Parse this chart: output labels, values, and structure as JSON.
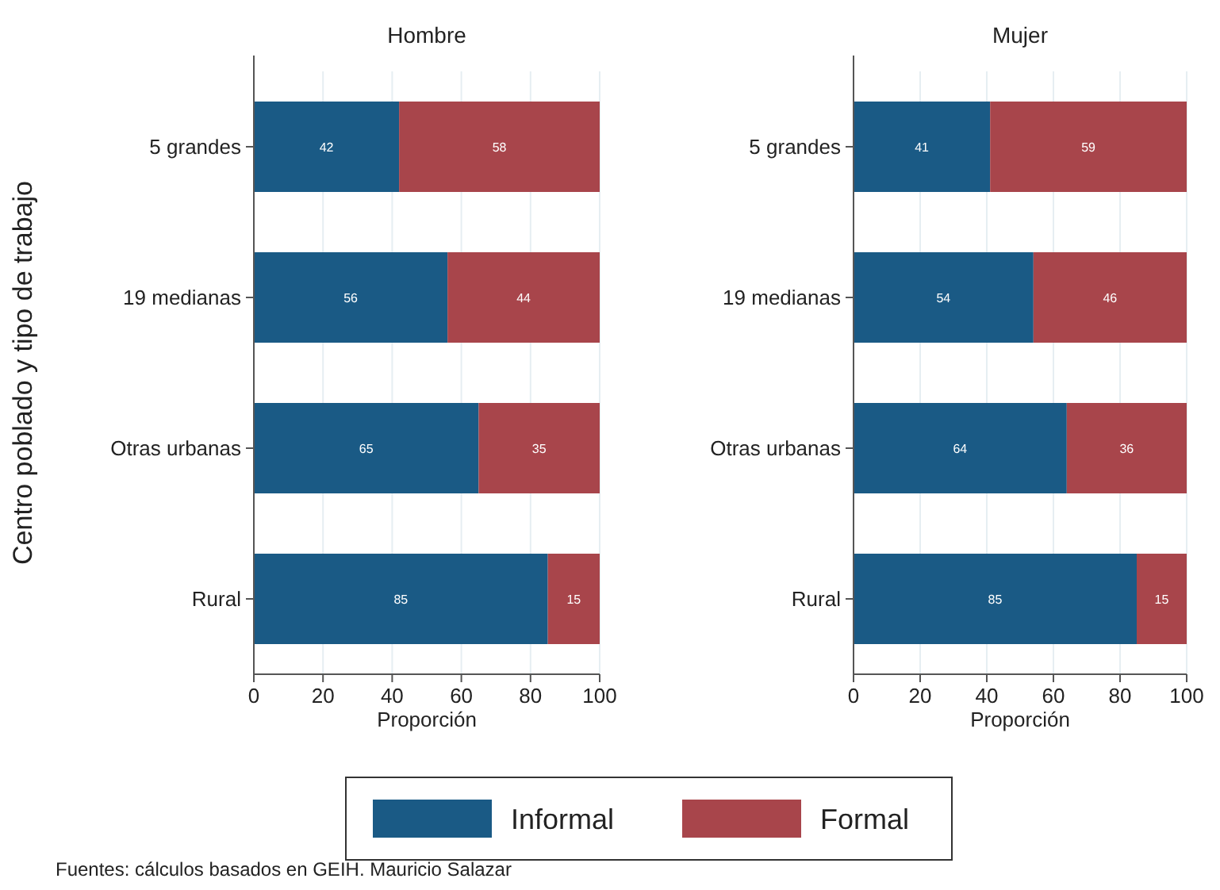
{
  "chart_data": [
    {
      "type": "bar",
      "title": "Hombre",
      "xlabel": "Proporción",
      "ylabel": "Centro poblado y tipo de trabajo",
      "orientation": "horizontal",
      "stacked": true,
      "data_labels": true,
      "grid": "x",
      "legend": "bottom",
      "categories": [
        "5 grandes",
        "19 medianas",
        "Otras urbanas",
        "Rural"
      ],
      "series": [
        {
          "name": "Informal",
          "color": "#1a5a85",
          "values": [
            42,
            56,
            65,
            85
          ]
        },
        {
          "name": "Formal",
          "color": "#a8454b",
          "values": [
            58,
            44,
            35,
            15
          ]
        }
      ],
      "xlim": [
        0,
        100
      ],
      "xticks": [
        0,
        20,
        40,
        60,
        80,
        100
      ],
      "annotations": [
        "Fuentes: cálculos basados en GEIH. Mauricio Salazar"
      ]
    },
    {
      "type": "bar",
      "title": "Mujer",
      "xlabel": "Proporción",
      "orientation": "horizontal",
      "stacked": true,
      "data_labels": true,
      "grid": "x",
      "categories": [
        "5 grandes",
        "19 medianas",
        "Otras urbanas",
        "Rural"
      ],
      "series": [
        {
          "color": "#1a5a85",
          "values": [
            41,
            54,
            64,
            85
          ]
        },
        {
          "color": "#a8454b",
          "values": [
            59,
            46,
            36,
            15
          ]
        }
      ],
      "xlim": [
        0,
        100
      ],
      "xticks": [
        0,
        20,
        40,
        60,
        80,
        100
      ]
    }
  ]
}
